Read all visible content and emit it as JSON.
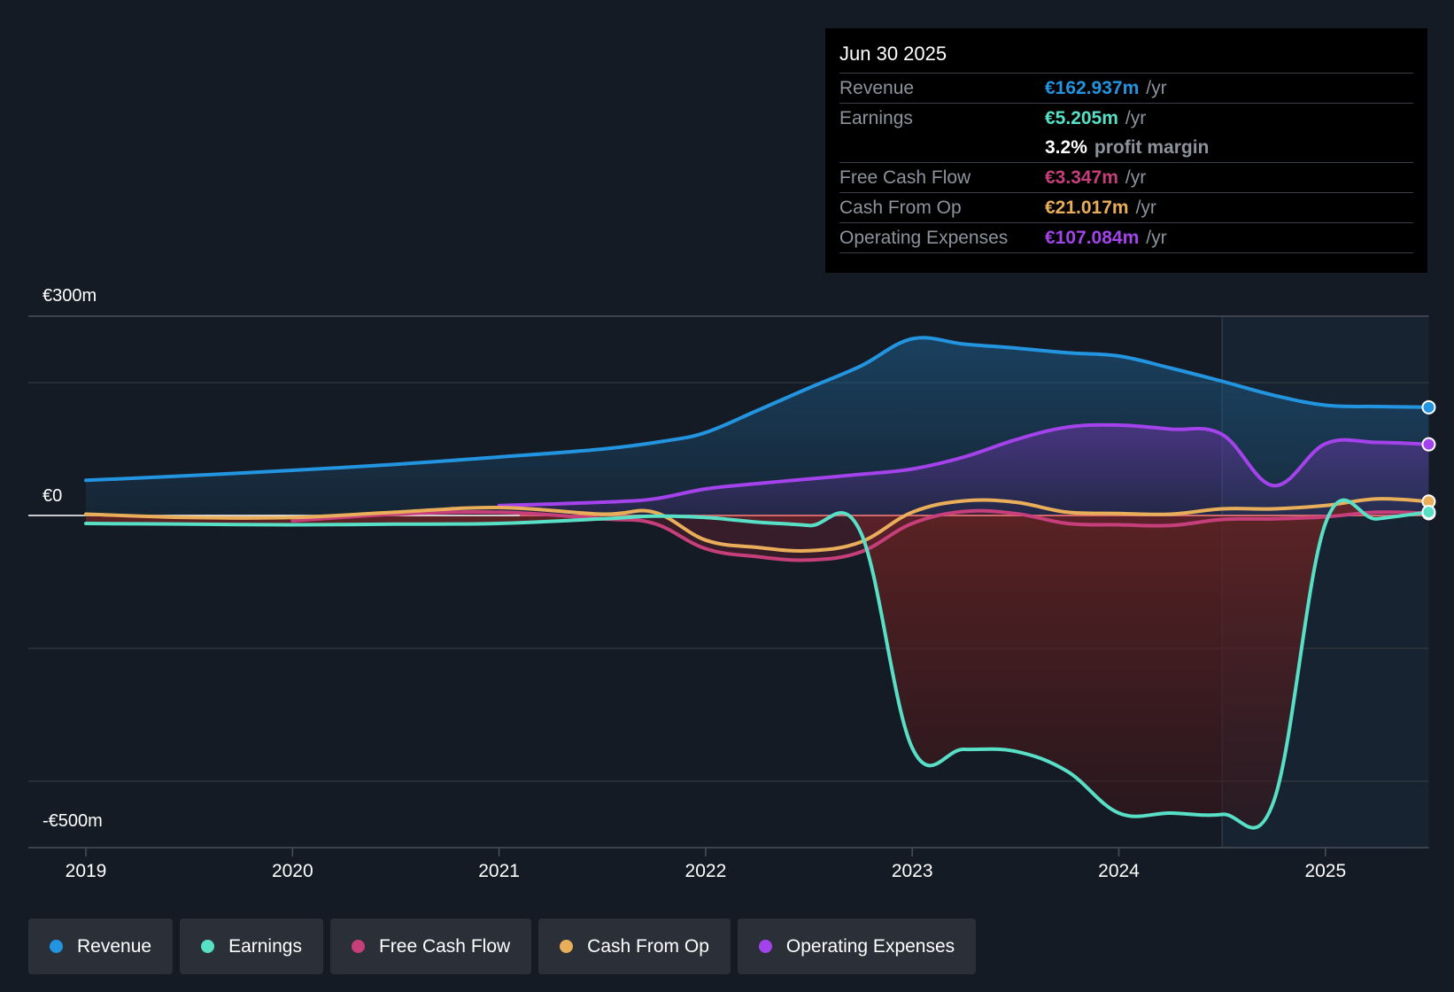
{
  "chart_data": {
    "type": "line",
    "title": "",
    "y_unit": "€m",
    "ylim": [
      -500,
      300
    ],
    "y_tick_labels": [
      {
        "value": 300,
        "label": "€300m"
      },
      {
        "value": 0,
        "label": "€0"
      },
      {
        "value": -500,
        "label": "-€500m"
      }
    ],
    "gridlines": [
      300,
      200,
      0,
      -200,
      -400
    ],
    "xlim": [
      2018.72,
      2025.5
    ],
    "x_ticks": [
      2019,
      2020,
      2021,
      2022,
      2023,
      2024,
      2025
    ],
    "x_tick_labels": [
      "2019",
      "2020",
      "2021",
      "2022",
      "2023",
      "2024",
      "2025"
    ],
    "highlight_start": 2024.5,
    "series": [
      {
        "name": "Revenue",
        "color": "#2394df",
        "fill": true,
        "points": [
          [
            2019.0,
            53
          ],
          [
            2019.5,
            60
          ],
          [
            2020.0,
            68
          ],
          [
            2020.5,
            77
          ],
          [
            2021.0,
            88
          ],
          [
            2021.5,
            100
          ],
          [
            2021.8,
            112
          ],
          [
            2022.0,
            125
          ],
          [
            2022.25,
            158
          ],
          [
            2022.5,
            192
          ],
          [
            2022.75,
            225
          ],
          [
            2023.0,
            266
          ],
          [
            2023.25,
            258
          ],
          [
            2023.5,
            252
          ],
          [
            2023.75,
            245
          ],
          [
            2024.0,
            240
          ],
          [
            2024.25,
            222
          ],
          [
            2024.5,
            202
          ],
          [
            2024.75,
            181
          ],
          [
            2025.0,
            166
          ],
          [
            2025.25,
            164
          ],
          [
            2025.5,
            162.9
          ]
        ]
      },
      {
        "name": "Operating Expenses",
        "color": "#a443eb",
        "fill": true,
        "points": [
          [
            2021.0,
            15
          ],
          [
            2021.5,
            20
          ],
          [
            2021.75,
            25
          ],
          [
            2022.0,
            40
          ],
          [
            2022.25,
            48
          ],
          [
            2022.5,
            55
          ],
          [
            2022.75,
            62
          ],
          [
            2023.0,
            70
          ],
          [
            2023.25,
            88
          ],
          [
            2023.5,
            114
          ],
          [
            2023.75,
            133
          ],
          [
            2024.0,
            136
          ],
          [
            2024.25,
            130
          ],
          [
            2024.5,
            122
          ],
          [
            2024.75,
            45
          ],
          [
            2025.0,
            108
          ],
          [
            2025.25,
            110
          ],
          [
            2025.5,
            107.1
          ]
        ]
      },
      {
        "name": "Free Cash Flow",
        "color": "#c63f7b",
        "fill": true,
        "points": [
          [
            2020.0,
            -8
          ],
          [
            2020.5,
            2
          ],
          [
            2021.0,
            5
          ],
          [
            2021.5,
            -5
          ],
          [
            2021.75,
            -12
          ],
          [
            2022.0,
            -50
          ],
          [
            2022.25,
            -62
          ],
          [
            2022.5,
            -67
          ],
          [
            2022.75,
            -55
          ],
          [
            2023.0,
            -12
          ],
          [
            2023.25,
            6
          ],
          [
            2023.5,
            3
          ],
          [
            2023.75,
            -12
          ],
          [
            2024.0,
            -14
          ],
          [
            2024.25,
            -15
          ],
          [
            2024.5,
            -6
          ],
          [
            2024.75,
            -5
          ],
          [
            2025.0,
            -2
          ],
          [
            2025.25,
            5
          ],
          [
            2025.5,
            3.3
          ]
        ]
      },
      {
        "name": "Cash From Op",
        "color": "#e9ae5a",
        "fill": false,
        "points": [
          [
            2019.0,
            2
          ],
          [
            2019.5,
            -3
          ],
          [
            2020.0,
            -3
          ],
          [
            2020.5,
            5
          ],
          [
            2021.0,
            12
          ],
          [
            2021.5,
            2
          ],
          [
            2021.75,
            5
          ],
          [
            2022.0,
            -37
          ],
          [
            2022.25,
            -48
          ],
          [
            2022.5,
            -53
          ],
          [
            2022.75,
            -40
          ],
          [
            2023.0,
            5
          ],
          [
            2023.25,
            22
          ],
          [
            2023.5,
            20
          ],
          [
            2023.75,
            5
          ],
          [
            2024.0,
            3
          ],
          [
            2024.25,
            2
          ],
          [
            2024.5,
            10
          ],
          [
            2024.75,
            10
          ],
          [
            2025.0,
            15
          ],
          [
            2025.25,
            25
          ],
          [
            2025.5,
            21.0
          ]
        ]
      },
      {
        "name": "Earnings",
        "color": "#58e0c7",
        "fill": true,
        "points": [
          [
            2019.0,
            -12
          ],
          [
            2019.5,
            -13
          ],
          [
            2020.0,
            -14
          ],
          [
            2020.5,
            -13
          ],
          [
            2021.0,
            -12
          ],
          [
            2021.5,
            -5
          ],
          [
            2021.75,
            -1
          ],
          [
            2022.0,
            -3
          ],
          [
            2022.25,
            -10
          ],
          [
            2022.5,
            -15
          ],
          [
            2022.75,
            -25
          ],
          [
            2023.0,
            -350
          ],
          [
            2023.25,
            -352
          ],
          [
            2023.5,
            -355
          ],
          [
            2023.75,
            -385
          ],
          [
            2024.0,
            -448
          ],
          [
            2024.25,
            -448
          ],
          [
            2024.5,
            -450
          ],
          [
            2024.75,
            -430
          ],
          [
            2025.0,
            -12
          ],
          [
            2025.25,
            -5
          ],
          [
            2025.5,
            5.2
          ]
        ]
      }
    ]
  },
  "tooltip": {
    "date": "Jun 30 2025",
    "unit": "/yr",
    "rows": {
      "revenue": {
        "label": "Revenue",
        "value": "€162.937m",
        "color": "#2394df"
      },
      "earnings": {
        "label": "Earnings",
        "value": "€5.205m",
        "color": "#58e0c7"
      },
      "margin": {
        "value": "3.2%",
        "text": "profit margin"
      },
      "fcf": {
        "label": "Free Cash Flow",
        "value": "€3.347m",
        "color": "#c63f7b"
      },
      "cfo": {
        "label": "Cash From Op",
        "value": "€21.017m",
        "color": "#e9ae5a"
      },
      "opex": {
        "label": "Operating Expenses",
        "value": "€107.084m",
        "color": "#a443eb"
      }
    }
  },
  "legend": {
    "items": [
      {
        "label": "Revenue",
        "color": "#2394df"
      },
      {
        "label": "Earnings",
        "color": "#58e0c7"
      },
      {
        "label": "Free Cash Flow",
        "color": "#c63f7b"
      },
      {
        "label": "Cash From Op",
        "color": "#e9ae5a"
      },
      {
        "label": "Operating Expenses",
        "color": "#a443eb"
      }
    ]
  }
}
